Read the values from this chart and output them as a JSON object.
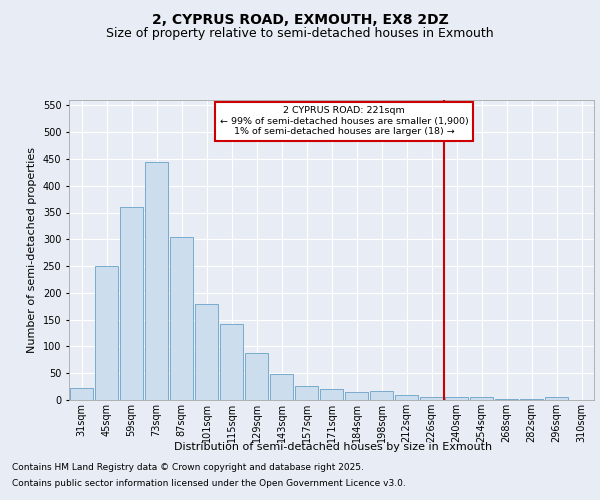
{
  "title": "2, CYPRUS ROAD, EXMOUTH, EX8 2DZ",
  "subtitle": "Size of property relative to semi-detached houses in Exmouth",
  "xlabel": "Distribution of semi-detached houses by size in Exmouth",
  "ylabel": "Number of semi-detached properties",
  "bar_labels": [
    "31sqm",
    "45sqm",
    "59sqm",
    "73sqm",
    "87sqm",
    "101sqm",
    "115sqm",
    "129sqm",
    "143sqm",
    "157sqm",
    "171sqm",
    "184sqm",
    "198sqm",
    "212sqm",
    "226sqm",
    "240sqm",
    "254sqm",
    "268sqm",
    "282sqm",
    "296sqm",
    "310sqm"
  ],
  "bar_heights": [
    22,
    250,
    360,
    445,
    305,
    180,
    142,
    87,
    48,
    27,
    20,
    15,
    17,
    9,
    5,
    6,
    5,
    2,
    1,
    5,
    0
  ],
  "bar_color": "#ccdded",
  "bar_edge_color": "#7aabcc",
  "ylim": [
    0,
    560
  ],
  "yticks": [
    0,
    50,
    100,
    150,
    200,
    250,
    300,
    350,
    400,
    450,
    500,
    550
  ],
  "vline_x": 14.5,
  "vline_color": "#cc0000",
  "annotation_title": "2 CYPRUS ROAD: 221sqm",
  "annotation_line1": "← 99% of semi-detached houses are smaller (1,900)",
  "annotation_line2": "1% of semi-detached houses are larger (18) →",
  "annotation_box_color": "#cc0000",
  "footnote1": "Contains HM Land Registry data © Crown copyright and database right 2025.",
  "footnote2": "Contains public sector information licensed under the Open Government Licence v3.0.",
  "bg_color": "#e8ecf4",
  "plot_bg_color": "#e8ecf4",
  "title_fontsize": 10,
  "subtitle_fontsize": 9,
  "axis_label_fontsize": 8,
  "tick_fontsize": 7,
  "footnote_fontsize": 6.5
}
